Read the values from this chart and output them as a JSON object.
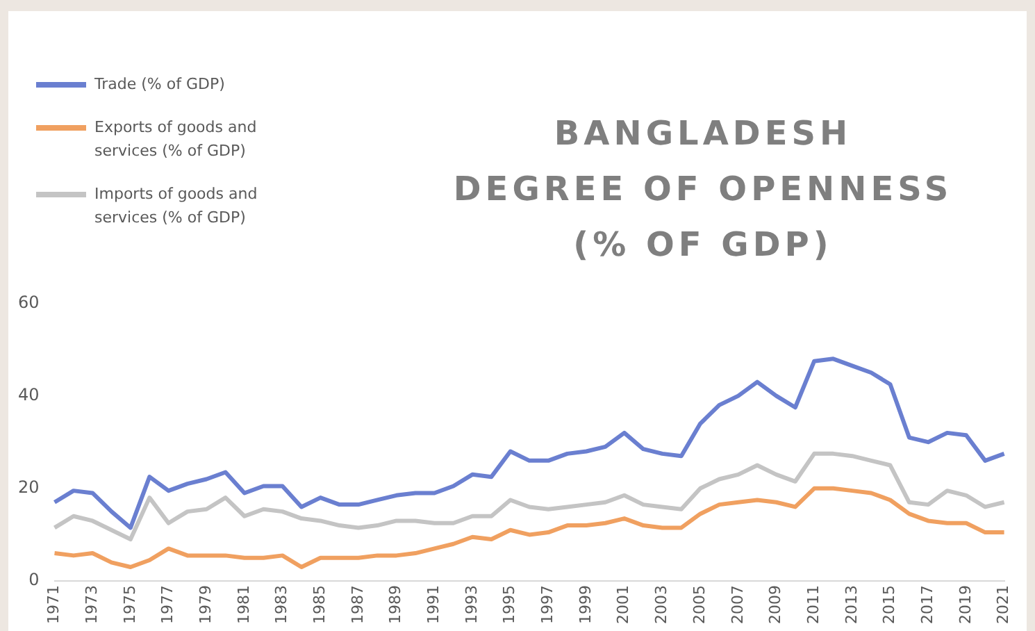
{
  "chart_data": {
    "type": "line",
    "title": "BANGLADESH\nDEGREE OF OPENNESS\n(% OF GDP)",
    "categories": [
      "1971",
      null,
      "1973",
      null,
      "1975",
      null,
      "1977",
      null,
      "1979",
      null,
      "1981",
      null,
      "1983",
      null,
      "1985",
      null,
      "1987",
      null,
      "1989",
      null,
      "1991",
      null,
      "1993",
      null,
      "1995",
      null,
      "1997",
      null,
      "1999",
      null,
      "2001",
      null,
      "2003",
      null,
      "2005",
      null,
      "2007",
      null,
      "2009",
      null,
      "2011",
      null,
      "2013",
      null,
      "2015",
      null,
      "2017",
      null,
      "2019",
      null,
      "2021"
    ],
    "series": [
      {
        "name": "Trade (% of GDP)",
        "color": "#6a7fd0",
        "values": [
          17,
          19.5,
          19,
          15,
          11.5,
          22.5,
          19.5,
          21,
          22,
          23.5,
          19,
          20.5,
          20.5,
          16,
          18,
          16.5,
          16.5,
          17.5,
          18.5,
          19,
          19,
          20.5,
          23,
          22.5,
          28,
          26,
          26,
          27.5,
          28,
          29,
          32,
          28.5,
          27.5,
          27,
          34,
          38,
          40,
          43,
          40,
          37.5,
          47.5,
          48,
          46.5,
          45,
          42.5,
          31,
          30,
          32,
          31.5,
          26,
          27.5
        ]
      },
      {
        "name": "Exports of goods and services (% of GDP)",
        "color": "#f0a060",
        "values": [
          6,
          5.5,
          6,
          4,
          3,
          4.5,
          7,
          5.5,
          5.5,
          5.5,
          5,
          5,
          5.5,
          3,
          5,
          5,
          5,
          5.5,
          5.5,
          6,
          7,
          8,
          9.5,
          9,
          11,
          10,
          10.5,
          12,
          12,
          12.5,
          13.5,
          12,
          11.5,
          11.5,
          14.5,
          16.5,
          17,
          17.5,
          17,
          16,
          20,
          20,
          19.5,
          19,
          17.5,
          14.5,
          13,
          12.5,
          12.5,
          10.5,
          10.5
        ]
      },
      {
        "name": "Imports of goods and services (% of GDP)",
        "color": "#c4c4c4",
        "values": [
          11.5,
          14,
          13,
          11,
          9,
          18,
          12.5,
          15,
          15.5,
          18,
          14,
          15.5,
          15,
          13.5,
          13,
          12,
          11.5,
          12,
          13,
          13,
          12.5,
          12.5,
          14,
          14,
          17.5,
          16,
          15.5,
          16,
          16.5,
          17,
          18.5,
          16.5,
          16,
          15.5,
          20,
          22,
          23,
          25,
          23,
          21.5,
          27.5,
          27.5,
          27,
          26,
          25,
          17,
          16.5,
          19.5,
          18.5,
          16,
          17
        ]
      }
    ],
    "ylim": [
      0,
      60
    ],
    "yticks": [
      0,
      20,
      40,
      60
    ],
    "grid": false,
    "legend": "top left",
    "marker": "none",
    "line_style": "solid"
  }
}
